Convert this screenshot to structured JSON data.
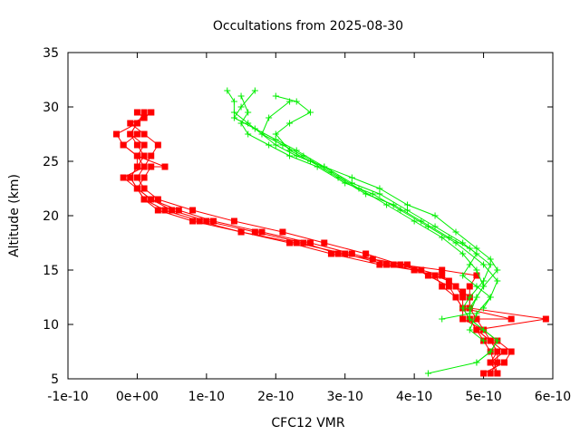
{
  "chart_data": {
    "type": "line",
    "title": "Occultations from 2025-08-30",
    "xlabel": "CFC12 VMR",
    "ylabel": "Altitude (km)",
    "xlim": [
      -1e-10,
      6e-10
    ],
    "ylim": [
      5,
      35
    ],
    "x_ticks": [
      -1e-10,
      0,
      1e-10,
      2e-10,
      3e-10,
      4e-10,
      5e-10,
      6e-10
    ],
    "x_tick_labels": [
      "-1e-10",
      "0e+00",
      "1e-10",
      "2e-10",
      "3e-10",
      "4e-10",
      "5e-10",
      "6e-10"
    ],
    "y_ticks": [
      5,
      10,
      15,
      20,
      25,
      30,
      35
    ],
    "y_tick_labels": [
      "5",
      "10",
      "15",
      "20",
      "25",
      "30",
      "35"
    ],
    "grid": false,
    "series": [
      {
        "marker": "square",
        "color": "#ff0000",
        "profiles": [
          {
            "x": [
              5.1e-10,
              5.2e-10,
              5.2e-10,
              5.1e-10,
              5e-10,
              4.9e-10,
              4.8e-10,
              4.8e-10,
              4.7e-10,
              4.6e-10,
              4.5e-10,
              4.3e-10,
              4e-10,
              3.5e-10,
              2.8e-10,
              2.2e-10,
              1.5e-10,
              8e-11,
              3e-11,
              1e-11,
              0.0,
              -1e-11,
              0.0,
              1e-11,
              0.0,
              -1e-11,
              0.0,
              1e-11,
              2e-11
            ],
            "y": [
              5.5,
              6.5,
              7.5,
              8.5,
              9.5,
              10.5,
              11.5,
              12.5,
              13.0,
              13.5,
              14.0,
              14.5,
              15.0,
              15.5,
              16.5,
              17.5,
              18.5,
              19.5,
              20.5,
              21.5,
              22.5,
              23.5,
              24.5,
              25.5,
              26.5,
              27.5,
              28.5,
              29.0,
              29.5
            ]
          },
          {
            "x": [
              5e-10,
              5.3e-10,
              5.4e-10,
              5.2e-10,
              5e-10,
              4.7e-10,
              4.7e-10,
              4.7e-10,
              4.6e-10,
              4.4e-10,
              4.1e-10,
              3.7e-10,
              3.1e-10,
              2.5e-10,
              1.8e-10,
              1.1e-10,
              6e-11,
              2e-11,
              0.0,
              -2e-11,
              1e-11,
              0.0,
              -2e-11,
              -3e-11,
              0.0,
              2e-11
            ],
            "y": [
              5.5,
              6.5,
              7.5,
              8.5,
              9.5,
              10.5,
              11.5,
              12.5,
              13.5,
              14.5,
              15.0,
              15.5,
              16.5,
              17.5,
              18.5,
              19.5,
              20.5,
              21.5,
              22.5,
              23.5,
              24.5,
              25.5,
              26.5,
              27.5,
              28.5,
              29.5
            ]
          },
          {
            "x": [
              5.2e-10,
              5.1e-10,
              5.3e-10,
              5.1e-10,
              4.9e-10,
              5.9e-10,
              4.8e-10,
              4.8e-10,
              4.8e-10,
              4.9e-10,
              4.4e-10,
              3.8e-10,
              3.3e-10,
              2.7e-10,
              2.1e-10,
              1.4e-10,
              8e-11,
              3e-11,
              1e-11,
              0.0,
              1e-11,
              2e-11,
              3e-11,
              1e-11,
              -1e-11,
              1e-11,
              0.0
            ],
            "y": [
              5.5,
              6.5,
              7.5,
              8.5,
              9.5,
              10.5,
              11.5,
              12.5,
              13.5,
              14.5,
              15.0,
              15.5,
              16.5,
              17.5,
              18.5,
              19.5,
              20.5,
              21.5,
              22.5,
              23.5,
              24.5,
              25.5,
              26.5,
              27.5,
              28.5,
              29.0,
              29.5
            ]
          },
          {
            "x": [
              5.2e-10,
              5.1e-10,
              5e-10,
              4.9e-10,
              4.8e-10,
              5.4e-10,
              4.7e-10,
              4.6e-10,
              4.5e-10,
              4.2e-10,
              3.9e-10,
              3.4e-10,
              2.9e-10,
              2.4e-10,
              1.7e-10,
              1e-10,
              5e-11,
              2e-11,
              0.0,
              -1e-11,
              0.0,
              0.0,
              1e-11,
              -1e-11,
              0.0,
              1e-11
            ],
            "y": [
              5.5,
              7.5,
              8.5,
              9.5,
              10.5,
              10.5,
              11.5,
              12.5,
              13.5,
              14.5,
              15.5,
              16.0,
              16.5,
              17.5,
              18.5,
              19.5,
              20.5,
              21.5,
              22.5,
              23.5,
              24.5,
              25.5,
              26.5,
              27.5,
              28.5,
              29.5
            ]
          },
          {
            "x": [
              5.1e-10,
              5.2e-10,
              5.1e-10,
              4.9e-10,
              4.8e-10,
              4.7e-10,
              4.6e-10,
              4.4e-10,
              4.3e-10,
              4e-10,
              3.6e-10,
              3e-10,
              2.3e-10,
              1.5e-10,
              9e-11,
              4e-11,
              1e-11,
              0.0,
              1e-11,
              2e-11,
              4e-11,
              0.0,
              -2e-11,
              0.0
            ],
            "y": [
              6.5,
              7.5,
              8.5,
              9.5,
              10.5,
              11.5,
              12.5,
              13.5,
              14.5,
              15.0,
              15.5,
              16.5,
              17.5,
              18.5,
              19.5,
              20.5,
              21.5,
              22.5,
              23.5,
              24.5,
              24.5,
              25.5,
              26.5,
              27.5
            ]
          }
        ]
      },
      {
        "marker": "plus",
        "color": "#00ee00",
        "profiles": [
          {
            "x": [
              4.2e-10,
              4.9e-10,
              5.1e-10,
              5.2e-10,
              5e-10,
              4.8e-10,
              4.8e-10,
              4.9e-10,
              5e-10,
              4.9e-10,
              4.7e-10,
              4.4e-10,
              4e-10,
              3.6e-10,
              3.2e-10,
              2.8e-10,
              2.4e-10,
              2.1e-10,
              1.8e-10,
              1.6e-10,
              1.4e-10,
              1.4e-10,
              1.3e-10
            ],
            "y": [
              5.5,
              6.5,
              7.5,
              8.5,
              9.5,
              10.5,
              11.5,
              12.5,
              13.5,
              15.0,
              16.5,
              18.0,
              19.5,
              21.0,
              22.5,
              24.0,
              25.5,
              26.5,
              27.5,
              28.5,
              29.5,
              30.5,
              31.5
            ]
          },
          {
            "x": [
              4.9e-10,
              5.1e-10,
              5.2e-10,
              5e-10,
              4.8e-10,
              4.7e-10,
              4.8e-10,
              5e-10,
              5.1e-10,
              4.8e-10,
              4.5e-10,
              4.1e-10,
              3.7e-10,
              3.3e-10,
              2.9e-10,
              2.5e-10,
              2.2e-10,
              2e-10,
              2.2e-10,
              2.5e-10,
              2.3e-10,
              2e-10
            ],
            "y": [
              6.5,
              7.5,
              8.5,
              9.5,
              10.5,
              11.5,
              12.5,
              14.0,
              15.5,
              17.0,
              18.0,
              19.5,
              21.0,
              22.0,
              23.5,
              25.0,
              26.0,
              27.5,
              28.5,
              29.5,
              30.5,
              31.0
            ]
          },
          {
            "x": [
              5e-10,
              4.8e-10,
              4.9e-10,
              5.1e-10,
              5.2e-10,
              5e-10,
              4.6e-10,
              4.2e-10,
              3.8e-10,
              3.4e-10,
              3e-10,
              2.6e-10,
              2.2e-10,
              1.9e-10,
              1.6e-10,
              1.5e-10,
              1.6e-10,
              1.5e-10
            ],
            "y": [
              8.5,
              9.5,
              11.0,
              12.5,
              14.0,
              15.5,
              17.5,
              19.0,
              20.5,
              22.0,
              23.0,
              24.5,
              25.5,
              26.5,
              27.5,
              28.5,
              29.5,
              31.0
            ]
          },
          {
            "x": [
              4.4e-10,
              4.8e-10,
              4.9e-10,
              5e-10,
              5.2e-10,
              5.1e-10,
              4.9e-10,
              4.6e-10,
              4.3e-10,
              3.9e-10,
              3.5e-10,
              3.1e-10,
              2.7e-10,
              2.3e-10,
              2e-10,
              1.7e-10,
              1.4e-10,
              1.5e-10,
              1.7e-10
            ],
            "y": [
              10.5,
              11.0,
              12.5,
              13.5,
              15.0,
              16.0,
              17.0,
              18.5,
              20.0,
              21.0,
              22.5,
              23.5,
              24.5,
              26.0,
              27.0,
              28.0,
              29.0,
              30.0,
              31.5
            ]
          },
          {
            "x": [
              5e-10,
              5.1e-10,
              4.9e-10,
              4.7e-10,
              4.8e-10,
              4.9e-10,
              4.7e-10,
              4.3e-10,
              3.9e-10,
              3.5e-10,
              3.1e-10,
              2.7e-10,
              2.3e-10,
              2e-10,
              1.8e-10,
              1.9e-10,
              2.2e-10
            ],
            "y": [
              11.5,
              12.5,
              13.5,
              14.5,
              15.5,
              16.5,
              17.5,
              19.0,
              20.5,
              22.0,
              23.0,
              24.5,
              25.5,
              26.5,
              27.5,
              29.0,
              30.5
            ]
          }
        ]
      }
    ]
  }
}
